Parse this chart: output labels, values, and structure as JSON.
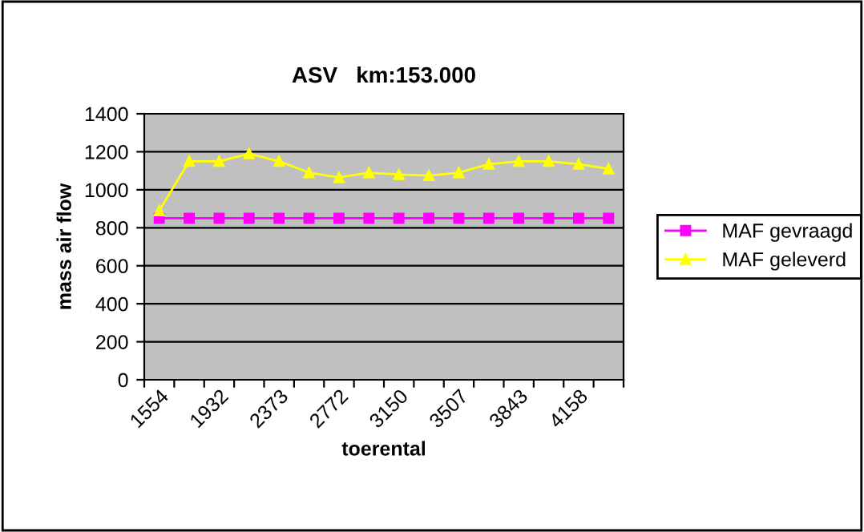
{
  "chart_data": {
    "type": "line",
    "title": "ASV   km:153.000",
    "xlabel": "toerental",
    "ylabel": "mass air flow",
    "categories": [
      "1554",
      null,
      "1932",
      null,
      "2373",
      null,
      "2772",
      null,
      "3150",
      null,
      "3507",
      null,
      "3843",
      null,
      "4158",
      null
    ],
    "series": [
      {
        "name": "MAF gevraagd",
        "color": "#ff00ff",
        "marker": "square",
        "values": [
          850,
          850,
          850,
          850,
          850,
          850,
          850,
          850,
          850,
          850,
          850,
          850,
          850,
          850,
          850,
          850
        ]
      },
      {
        "name": "MAF geleverd",
        "color": "#ffff00",
        "marker": "triangle",
        "values": [
          890,
          1150,
          1150,
          1190,
          1150,
          1090,
          1065,
          1090,
          1080,
          1075,
          1090,
          1135,
          1150,
          1150,
          1135,
          1110
        ]
      }
    ],
    "ylim": [
      0,
      1400
    ],
    "yticks": [
      0,
      200,
      400,
      600,
      800,
      1000,
      1200,
      1400
    ],
    "grid": "y",
    "legend": "right",
    "line_style": "solid"
  }
}
